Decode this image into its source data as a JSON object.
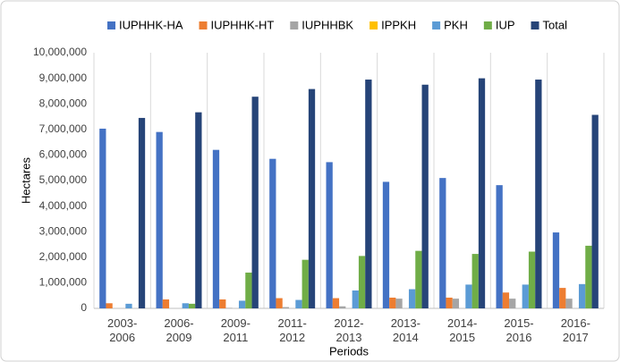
{
  "chart_data": {
    "type": "bar",
    "y_label": "Hectares",
    "x_label": "Periods",
    "categories": [
      [
        "2003-",
        "2006"
      ],
      [
        "2006-",
        "2009"
      ],
      [
        "2009-",
        "2011"
      ],
      [
        "2011-",
        "2012"
      ],
      [
        "2012-",
        "2013"
      ],
      [
        "2013-",
        "2014"
      ],
      [
        "2014-",
        "2015"
      ],
      [
        "2015-",
        "2016"
      ],
      [
        "2016-",
        "2017"
      ]
    ],
    "series": [
      {
        "name": "IUPHHK-HA",
        "color": "#4472c4",
        "values": [
          7030000,
          6900000,
          6200000,
          5850000,
          5720000,
          4950000,
          5100000,
          4820000,
          2970000
        ]
      },
      {
        "name": "IUPHHK-HT",
        "color": "#ed7d31",
        "values": [
          200000,
          350000,
          350000,
          400000,
          400000,
          420000,
          420000,
          620000,
          800000
        ]
      },
      {
        "name": "IUPHHBK",
        "color": "#a5a5a5",
        "values": [
          0,
          0,
          20000,
          50000,
          80000,
          380000,
          380000,
          380000,
          380000
        ]
      },
      {
        "name": "IPPKH",
        "color": "#ffc000",
        "values": [
          0,
          0,
          0,
          0,
          0,
          0,
          0,
          0,
          0
        ]
      },
      {
        "name": "PKH",
        "color": "#5b9bd5",
        "values": [
          180000,
          200000,
          300000,
          330000,
          700000,
          750000,
          930000,
          930000,
          950000
        ]
      },
      {
        "name": "IUP",
        "color": "#70ad47",
        "values": [
          0,
          180000,
          1400000,
          1900000,
          2050000,
          2250000,
          2130000,
          2220000,
          2450000
        ]
      },
      {
        "name": "Total",
        "color": "#264478",
        "values": [
          7450000,
          7670000,
          8280000,
          8580000,
          8950000,
          8750000,
          9000000,
          8950000,
          7570000
        ]
      }
    ],
    "ylim": [
      0,
      10000000
    ],
    "yticks": [
      0,
      {
        "value": 1000000,
        "label": "1,000,000"
      },
      {
        "value": 2000000,
        "label": "2,000,000"
      },
      {
        "value": 3000000,
        "label": "3,000,000"
      },
      {
        "value": 4000000,
        "label": "4,000,000"
      },
      {
        "value": 5000000,
        "label": "5,000,000"
      },
      {
        "value": 6000000,
        "label": "6,000,000"
      },
      {
        "value": 7000000,
        "label": "7,000,000"
      },
      {
        "value": 8000000,
        "label": "8,000,000"
      },
      {
        "value": 9000000,
        "label": "9,000,000"
      },
      {
        "value": 10000000,
        "label": "10,000,000"
      }
    ],
    "legend": "top"
  }
}
